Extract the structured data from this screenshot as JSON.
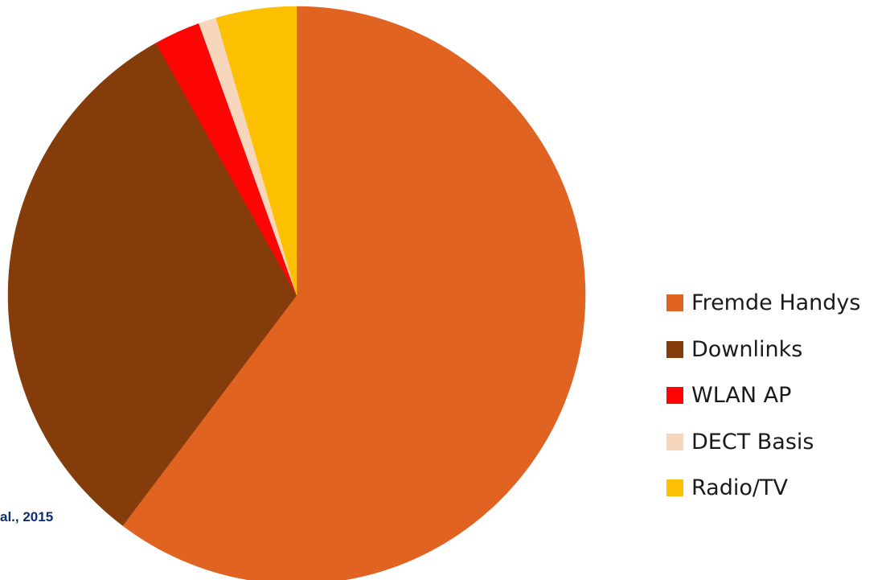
{
  "chart_data": {
    "type": "pie",
    "slices": [
      {
        "label": "Fremde Handys",
        "value": 60.3,
        "color": "#e06322"
      },
      {
        "label": "Downlinks",
        "value": 31.6,
        "color": "#843c0b"
      },
      {
        "label": "WLAN AP",
        "value": 2.6,
        "color": "#fb0505"
      },
      {
        "label": "DECT Basis",
        "value": 1.0,
        "color": "#f6d6bd"
      },
      {
        "label": "Radio/TV",
        "value": 4.5,
        "color": "#fcc000"
      }
    ],
    "start_angle_deg": 0,
    "direction": "clockwise",
    "legend_position": "right"
  },
  "source_note": "al., 2015"
}
